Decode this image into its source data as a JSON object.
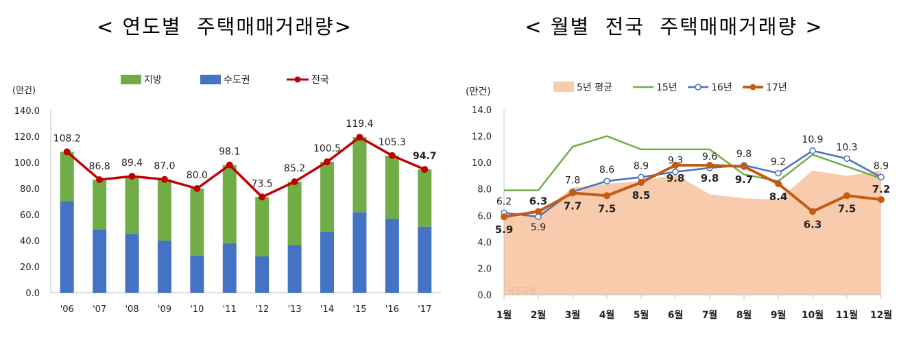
{
  "chart_data": [
    {
      "type": "bar",
      "title": "< 연도별  주택매매거래량>",
      "ylabel": "(만건)",
      "ylim": [
        0,
        140
      ],
      "yticks": [
        "0.0",
        "20.0",
        "40.0",
        "60.0",
        "80.0",
        "100.0",
        "120.0",
        "140.0"
      ],
      "categories": [
        "'06",
        "'07",
        "'08",
        "'09",
        "'10",
        "'11",
        "'12",
        "'13",
        "'14",
        "'15",
        "'16",
        "'17"
      ],
      "stacked": true,
      "grid": false,
      "legend_position": "top",
      "series": [
        {
          "name": "지방",
          "kind": "bar",
          "color": "#70ad47",
          "values": [
            37.8,
            38.2,
            44.2,
            47.0,
            51.5,
            60.1,
            45.6,
            48.6,
            53.6,
            57.6,
            48.4,
            44.0
          ]
        },
        {
          "name": "수도권",
          "kind": "bar",
          "color": "#4472c4",
          "values": [
            70.4,
            48.6,
            45.2,
            40.0,
            28.5,
            38.0,
            27.9,
            36.6,
            46.9,
            61.8,
            56.9,
            50.7
          ]
        },
        {
          "name": "전국",
          "kind": "line",
          "color": "#c00000",
          "values": [
            108.2,
            86.8,
            89.4,
            87.0,
            80.0,
            98.1,
            73.5,
            85.2,
            100.5,
            119.4,
            105.3,
            94.7
          ]
        }
      ],
      "data_labels": [
        "108.2",
        "86.8",
        "89.4",
        "87.0",
        "80.0",
        "98.1",
        "73.5",
        "85.2",
        "100.5",
        "119.4",
        "105.3",
        "94.7"
      ],
      "bold_label_index": 11
    },
    {
      "type": "line",
      "title": "< 월별  전국  주택매매거래량 >",
      "ylabel": "(만건)",
      "ylim": [
        0,
        14
      ],
      "yticks": [
        "0.0",
        "2.0",
        "4.0",
        "6.0",
        "8.0",
        "10.0",
        "12.0",
        "14.0"
      ],
      "categories": [
        "1월",
        "2월",
        "3월",
        "4월",
        "5월",
        "6월",
        "7월",
        "8월",
        "9월",
        "10월",
        "11월",
        "12월"
      ],
      "grid": false,
      "legend_position": "top",
      "series": [
        {
          "name": "5년 평균",
          "kind": "area",
          "color": "#f8cbad",
          "values": [
            5.8,
            6.1,
            8.1,
            8.4,
            8.6,
            9.1,
            7.6,
            7.3,
            7.2,
            9.4,
            9.0,
            9.4
          ]
        },
        {
          "name": "15년",
          "kind": "line",
          "color": "#70ad47",
          "values": [
            7.9,
            7.9,
            11.2,
            12.0,
            11.0,
            11.0,
            11.0,
            9.1,
            8.6,
            10.6,
            9.7,
            8.8
          ]
        },
        {
          "name": "16년",
          "kind": "line",
          "color": "#4472c4",
          "marker": "hollow",
          "values": [
            6.2,
            5.9,
            7.8,
            8.6,
            8.9,
            9.3,
            9.6,
            9.8,
            9.2,
            10.9,
            10.3,
            8.9
          ]
        },
        {
          "name": "17년",
          "kind": "line",
          "color": "#c55a11",
          "marker": "filled",
          "values": [
            5.9,
            6.3,
            7.7,
            7.5,
            8.5,
            9.8,
            9.8,
            9.7,
            8.4,
            6.3,
            7.5,
            7.2
          ]
        }
      ],
      "labels_16": [
        "6.2",
        "5.9",
        "7.8",
        "8.6",
        "8.9",
        "9.3",
        "9.6",
        "9.8",
        "9.2",
        "10.9",
        "10.3",
        "8.9"
      ],
      "labels_17": [
        "5.9",
        "6.3",
        "7.7",
        "7.5",
        "8.5",
        "9.8",
        "9.8",
        "9.7",
        "8.4",
        "6.3",
        "7.5",
        "7.2"
      ],
      "watermark": "국토교통"
    }
  ]
}
